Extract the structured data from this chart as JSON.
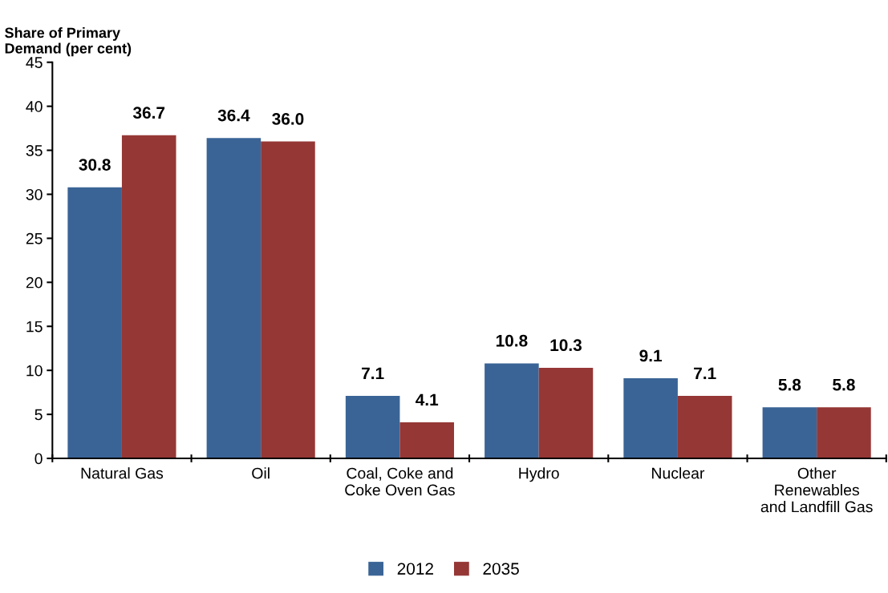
{
  "chart_data": {
    "type": "bar",
    "ylabel": "Share of Primary\nDemand (per cent)",
    "categories": [
      "Natural Gas",
      "Oil",
      "Coal, Coke and\nCoke Oven Gas",
      "Hydro",
      "Nuclear",
      "Other\nRenewables\nand Landfill Gas"
    ],
    "series": [
      {
        "name": "2012",
        "color": "#3a6496",
        "values": [
          30.8,
          36.4,
          7.1,
          10.8,
          9.1,
          5.8
        ],
        "value_labels": [
          "30.8",
          "36.4",
          "7.1",
          "10.8",
          "9.1",
          "5.8"
        ]
      },
      {
        "name": "2035",
        "color": "#953735",
        "values": [
          36.7,
          36.0,
          4.1,
          10.3,
          7.1,
          5.8
        ],
        "value_labels": [
          "36.7",
          "36.0",
          "4.1",
          "10.3",
          "7.1",
          "5.8"
        ]
      }
    ],
    "ylim": [
      0,
      45
    ],
    "yticks": [
      0,
      5,
      10,
      15,
      20,
      25,
      30,
      35,
      40,
      45
    ],
    "grid": false,
    "legend": "bottom"
  }
}
